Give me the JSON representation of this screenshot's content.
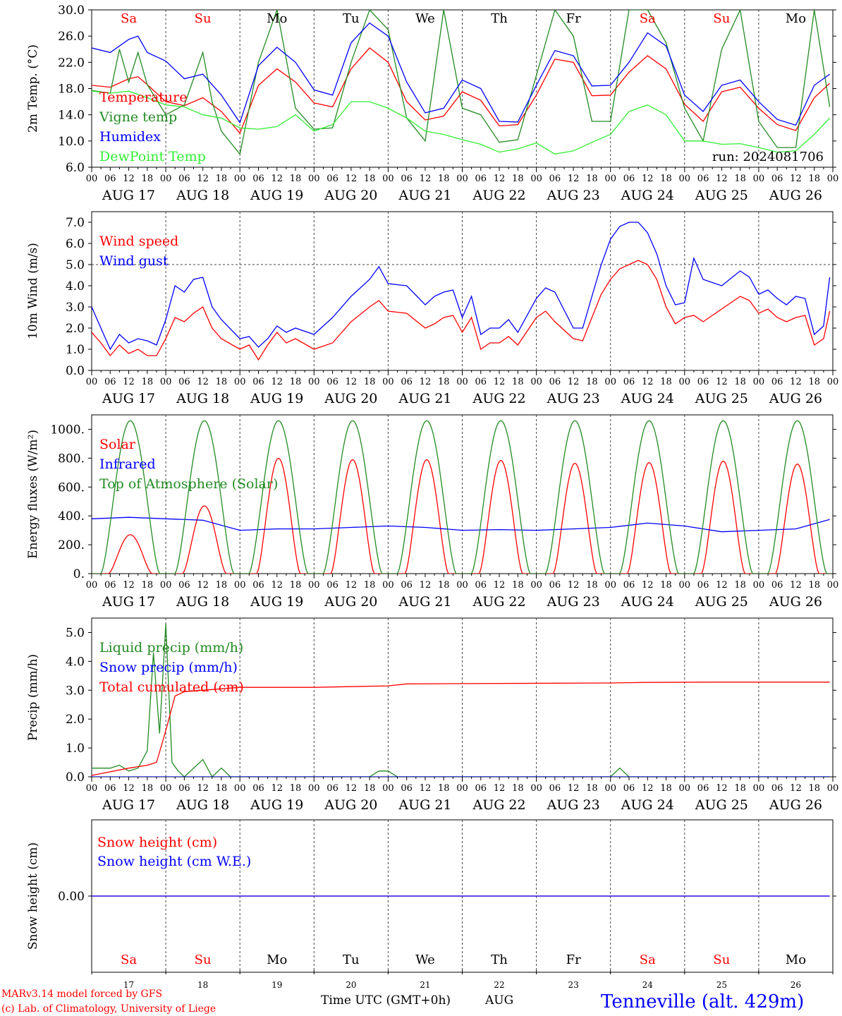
{
  "days": [
    "AUG 17",
    "AUG 18",
    "AUG 19",
    "AUG 20",
    "AUG 21",
    "AUG 22",
    "AUG 23",
    "AUG 24",
    "AUG 25",
    "AUG 26"
  ],
  "weekdays": [
    {
      "label": "Sa",
      "color": "#ff0000"
    },
    {
      "label": "Su",
      "color": "#ff0000"
    },
    {
      "label": "Mo",
      "color": "#000000"
    },
    {
      "label": "Tu",
      "color": "#000000"
    },
    {
      "label": "We",
      "color": "#000000"
    },
    {
      "label": "Th",
      "color": "#000000"
    },
    {
      "label": "Fr",
      "color": "#000000"
    },
    {
      "label": "Sa",
      "color": "#ff0000"
    },
    {
      "label": "Su",
      "color": "#ff0000"
    },
    {
      "label": "Mo",
      "color": "#000000"
    }
  ],
  "hour_ticks": [
    "00",
    "06",
    "12",
    "18"
  ],
  "day_numbers": [
    "17",
    "18",
    "19",
    "20",
    "21",
    "22",
    "23",
    "24",
    "25",
    "26"
  ],
  "chart_data": [
    {
      "type": "line",
      "ylabel": "2m Temp. (°C)",
      "ylim": [
        6,
        30
      ],
      "yticks": [
        6,
        10,
        14,
        18,
        22,
        26,
        30
      ],
      "ytick_labels": [
        "6.0",
        "10.0",
        "14.0",
        "18.0",
        "22.0",
        "26.0",
        "30.0"
      ],
      "x_unit": "hours since AUG 17 00 UTC",
      "annotation": "run: 2024081706",
      "series": [
        {
          "name": "Temperature",
          "color": "#ff0000",
          "x": [
            0,
            6,
            12,
            15,
            18,
            24,
            30,
            36,
            42,
            48,
            54,
            60,
            66,
            72,
            78,
            84,
            90,
            96,
            102,
            108,
            114,
            120,
            126,
            132,
            138,
            144,
            150,
            156,
            162,
            168,
            174,
            180,
            186,
            192,
            198,
            204,
            210,
            216,
            222,
            228,
            234,
            239
          ],
          "y": [
            18.5,
            18.2,
            19.5,
            19.8,
            18.6,
            16.0,
            15.4,
            16.6,
            14.5,
            11.2,
            18.5,
            21.0,
            19.0,
            15.8,
            15.2,
            21.0,
            24.2,
            22.0,
            16.0,
            13.2,
            13.8,
            17.5,
            16.2,
            12.3,
            12.5,
            17.0,
            22.5,
            22.0,
            16.9,
            17.0,
            20.5,
            23.0,
            21.0,
            15.6,
            13.0,
            17.5,
            18.2,
            15.0,
            12.5,
            11.6,
            16.6,
            18.8
          ]
        },
        {
          "name": "Vigne temp",
          "color": "#228b22",
          "x": [
            0,
            6,
            9,
            12,
            15,
            18,
            24,
            30,
            36,
            39,
            42,
            48,
            54,
            60,
            66,
            72,
            78,
            84,
            90,
            96,
            102,
            108,
            114,
            120,
            126,
            132,
            138,
            144,
            150,
            156,
            162,
            168,
            174,
            180,
            186,
            192,
            198,
            204,
            210,
            216,
            222,
            228,
            234,
            239
          ],
          "y": [
            17.7,
            17.3,
            24.0,
            19.0,
            23.5,
            18.6,
            14.0,
            15.5,
            23.5,
            16.0,
            11.5,
            8.0,
            22.0,
            30.0,
            15.0,
            11.8,
            12.0,
            22.0,
            30.0,
            27.0,
            13.5,
            10.0,
            30.0,
            15.0,
            14.0,
            9.8,
            10.2,
            20.0,
            30.0,
            26.0,
            13.0,
            13.0,
            30.0,
            30.0,
            25.0,
            15.0,
            10.0,
            24.0,
            30.0,
            13.0,
            9.0,
            9.0,
            30.0,
            15.2
          ]
        },
        {
          "name": "Humidex",
          "color": "#0000ff",
          "x": [
            0,
            6,
            12,
            15,
            18,
            24,
            30,
            36,
            42,
            48,
            54,
            60,
            66,
            72,
            78,
            84,
            90,
            96,
            102,
            108,
            114,
            120,
            126,
            132,
            138,
            144,
            150,
            156,
            162,
            168,
            174,
            180,
            186,
            192,
            198,
            204,
            210,
            216,
            222,
            228,
            234,
            239
          ],
          "y": [
            24.2,
            23.5,
            25.5,
            26.0,
            23.5,
            22.2,
            19.5,
            20.2,
            17.0,
            12.8,
            21.5,
            24.3,
            22.0,
            17.8,
            17.0,
            25.0,
            28.0,
            26.0,
            19.0,
            14.3,
            15.0,
            19.3,
            18.0,
            13.0,
            12.9,
            18.5,
            23.8,
            23.0,
            18.4,
            18.5,
            22.0,
            26.5,
            24.5,
            17.0,
            14.5,
            18.5,
            19.3,
            16.0,
            13.3,
            12.4,
            18.5,
            20.2
          ]
        },
        {
          "name": "DewPoint Temp",
          "color": "#33ee33",
          "x": [
            0,
            6,
            12,
            18,
            24,
            30,
            36,
            42,
            48,
            54,
            60,
            66,
            72,
            78,
            84,
            90,
            96,
            102,
            108,
            114,
            120,
            126,
            132,
            138,
            144,
            150,
            156,
            162,
            168,
            174,
            180,
            186,
            192,
            198,
            204,
            210,
            216,
            222,
            228,
            234,
            239
          ],
          "y": [
            17.6,
            17.3,
            17.6,
            16.6,
            15.5,
            15.2,
            14.0,
            13.5,
            12.0,
            11.8,
            12.2,
            14.0,
            11.5,
            12.5,
            16.0,
            16.0,
            15.0,
            13.5,
            11.5,
            11.0,
            10.2,
            9.5,
            8.3,
            8.8,
            9.7,
            8.0,
            8.5,
            9.8,
            11.0,
            14.5,
            15.5,
            14.0,
            10.0,
            10.0,
            9.5,
            9.6,
            9.0,
            8.3,
            8.5,
            11.0,
            13.5
          ]
        }
      ]
    },
    {
      "type": "line",
      "ylabel": "10m Wind (m/s)",
      "ylim": [
        0,
        7.5
      ],
      "yticks": [
        0,
        1,
        2,
        3,
        4,
        5,
        6,
        7
      ],
      "ytick_labels": [
        "0.0",
        "1.0",
        "2.0",
        "3.0",
        "4.0",
        "5.0",
        "6.0",
        "7.0"
      ],
      "ref_line": 5.0,
      "series": [
        {
          "name": "Wind speed",
          "color": "#ff0000",
          "x": [
            0,
            3,
            6,
            9,
            12,
            15,
            18,
            21,
            24,
            27,
            30,
            33,
            36,
            39,
            42,
            48,
            51,
            54,
            57,
            60,
            63,
            66,
            72,
            78,
            84,
            90,
            93,
            96,
            102,
            108,
            111,
            114,
            117,
            120,
            123,
            126,
            129,
            132,
            135,
            138,
            144,
            147,
            150,
            156,
            159,
            162,
            165,
            168,
            171,
            174,
            177,
            180,
            183,
            186,
            189,
            192,
            195,
            198,
            204,
            210,
            213,
            216,
            219,
            222,
            225,
            228,
            231,
            234,
            237,
            239
          ],
          "y": [
            1.8,
            1.3,
            0.7,
            1.2,
            0.8,
            1.0,
            0.7,
            0.7,
            1.5,
            2.5,
            2.3,
            2.7,
            3.0,
            2.0,
            1.5,
            1.0,
            1.2,
            0.5,
            1.2,
            1.8,
            1.3,
            1.5,
            1.0,
            1.3,
            2.3,
            3.0,
            3.3,
            2.8,
            2.7,
            2.0,
            2.2,
            2.5,
            2.6,
            1.8,
            2.5,
            1.0,
            1.3,
            1.3,
            1.6,
            1.2,
            2.5,
            2.8,
            2.3,
            1.5,
            1.4,
            2.5,
            3.6,
            4.3,
            4.8,
            5.0,
            5.2,
            5.0,
            4.3,
            3.0,
            2.2,
            2.5,
            2.6,
            2.3,
            2.9,
            3.5,
            3.3,
            2.7,
            2.9,
            2.5,
            2.3,
            2.5,
            2.6,
            1.2,
            1.5,
            2.8
          ]
        },
        {
          "name": "Wind gust",
          "color": "#0000ff",
          "x": [
            0,
            3,
            6,
            9,
            12,
            15,
            18,
            21,
            24,
            27,
            30,
            33,
            36,
            39,
            42,
            48,
            51,
            54,
            57,
            60,
            63,
            66,
            72,
            78,
            84,
            90,
            93,
            96,
            102,
            108,
            111,
            114,
            117,
            120,
            123,
            126,
            129,
            132,
            135,
            138,
            144,
            147,
            150,
            156,
            159,
            162,
            165,
            168,
            171,
            174,
            177,
            180,
            183,
            186,
            189,
            192,
            195,
            198,
            204,
            210,
            213,
            216,
            219,
            222,
            225,
            228,
            231,
            234,
            237,
            239
          ],
          "y": [
            3.0,
            2.0,
            1.0,
            1.7,
            1.3,
            1.5,
            1.4,
            1.2,
            2.4,
            4.0,
            3.7,
            4.3,
            4.4,
            3.0,
            2.4,
            1.5,
            1.6,
            1.1,
            1.5,
            2.1,
            1.8,
            2.0,
            1.7,
            2.5,
            3.5,
            4.3,
            4.9,
            4.1,
            4.0,
            3.1,
            3.5,
            3.7,
            3.8,
            2.5,
            3.5,
            1.7,
            2.0,
            2.0,
            2.4,
            1.8,
            3.4,
            3.9,
            3.7,
            2.0,
            2.0,
            3.5,
            5.0,
            6.2,
            6.8,
            7.0,
            7.0,
            6.5,
            5.5,
            4.0,
            3.1,
            3.2,
            5.3,
            4.3,
            4.0,
            4.7,
            4.4,
            3.6,
            3.8,
            3.4,
            3.1,
            3.5,
            3.4,
            1.7,
            2.1,
            4.4
          ]
        }
      ]
    },
    {
      "type": "line",
      "ylabel": "Energy fluxes (W/m²)",
      "ylim": [
        0,
        1100
      ],
      "yticks": [
        0,
        200,
        400,
        600,
        800,
        1000
      ],
      "ytick_labels": [
        "0.",
        "200.",
        "400.",
        "600.",
        "800.",
        "1000."
      ],
      "series": [
        {
          "name": "Solar",
          "color": "#ff0000",
          "peaks": [
            {
              "day": 0,
              "max": 270
            },
            {
              "day": 1,
              "max": 470
            },
            {
              "day": 2,
              "max": 800
            },
            {
              "day": 3,
              "max": 790
            },
            {
              "day": 4,
              "max": 790
            },
            {
              "day": 5,
              "max": 785
            },
            {
              "day": 6,
              "max": 765
            },
            {
              "day": 7,
              "max": 770
            },
            {
              "day": 8,
              "max": 780
            },
            {
              "day": 9,
              "max": 760
            }
          ]
        },
        {
          "name": "Infrared",
          "color": "#0000ff",
          "x": [
            0,
            12,
            24,
            36,
            48,
            60,
            72,
            84,
            96,
            108,
            120,
            132,
            144,
            156,
            168,
            180,
            192,
            204,
            216,
            228,
            239
          ],
          "y": [
            380,
            390,
            380,
            370,
            300,
            310,
            310,
            320,
            330,
            320,
            300,
            305,
            300,
            310,
            320,
            350,
            330,
            290,
            300,
            310,
            375
          ]
        },
        {
          "name": "Top of Atmosphere (Solar)",
          "color": "#228b22",
          "peak": 1060
        }
      ]
    },
    {
      "type": "line",
      "ylabel": "Precip (mm/h)",
      "ylim": [
        0,
        5.5
      ],
      "yticks": [
        0,
        1,
        2,
        3,
        4,
        5
      ],
      "ytick_labels": [
        "0.0",
        "1.0",
        "2.0",
        "3.0",
        "4.0",
        "5.0"
      ],
      "series": [
        {
          "name": "Liquid precip (mm/h)",
          "color": "#228b22",
          "x": [
            0,
            6,
            9,
            12,
            15,
            18,
            20,
            22,
            24,
            26,
            28,
            30,
            36,
            39,
            42,
            45,
            48,
            90,
            93,
            96,
            99,
            168,
            171,
            174,
            177,
            180,
            239
          ],
          "y": [
            0.3,
            0.3,
            0.4,
            0.2,
            0.3,
            0.9,
            4.3,
            1.5,
            5.3,
            0.5,
            0.2,
            0,
            0.6,
            0,
            0.3,
            0,
            0,
            0,
            0.2,
            0.2,
            0,
            0,
            0.3,
            0,
            0,
            0,
            0
          ]
        },
        {
          "name": "Snow precip (mm/h)",
          "color": "#0000ff",
          "x": [
            0,
            239
          ],
          "y": [
            0,
            0
          ]
        },
        {
          "name": "Total cumulated (cm)",
          "color": "#ff0000",
          "x": [
            0,
            12,
            18,
            21,
            24,
            27,
            30,
            36,
            48,
            72,
            96,
            102,
            120,
            168,
            180,
            200,
            239
          ],
          "y": [
            0.05,
            0.3,
            0.4,
            0.5,
            1.6,
            2.8,
            2.95,
            3.0,
            3.1,
            3.1,
            3.15,
            3.22,
            3.23,
            3.25,
            3.27,
            3.28,
            3.28
          ]
        }
      ]
    },
    {
      "type": "line",
      "ylabel": "Snow height (cm)",
      "ylim": [
        -1,
        1
      ],
      "yticks": [
        0
      ],
      "ytick_labels": [
        "0.00"
      ],
      "series": [
        {
          "name": "Snow height (cm)",
          "color": "#ff0000",
          "x": [
            0,
            239
          ],
          "y": [
            0,
            0
          ]
        },
        {
          "name": "Snow height (cm W.E.)",
          "color": "#0000ff",
          "x": [
            0,
            239
          ],
          "y": [
            0,
            0
          ]
        }
      ]
    }
  ],
  "footer": {
    "credit_1": "MARv3.14 model forced by GFS",
    "credit_2": "(c) Lab. of Climatology, University of Liege",
    "xlabel": "Time UTC (GMT+0h)",
    "month": "AUG",
    "station": "Tenneville (alt. 429m)"
  }
}
